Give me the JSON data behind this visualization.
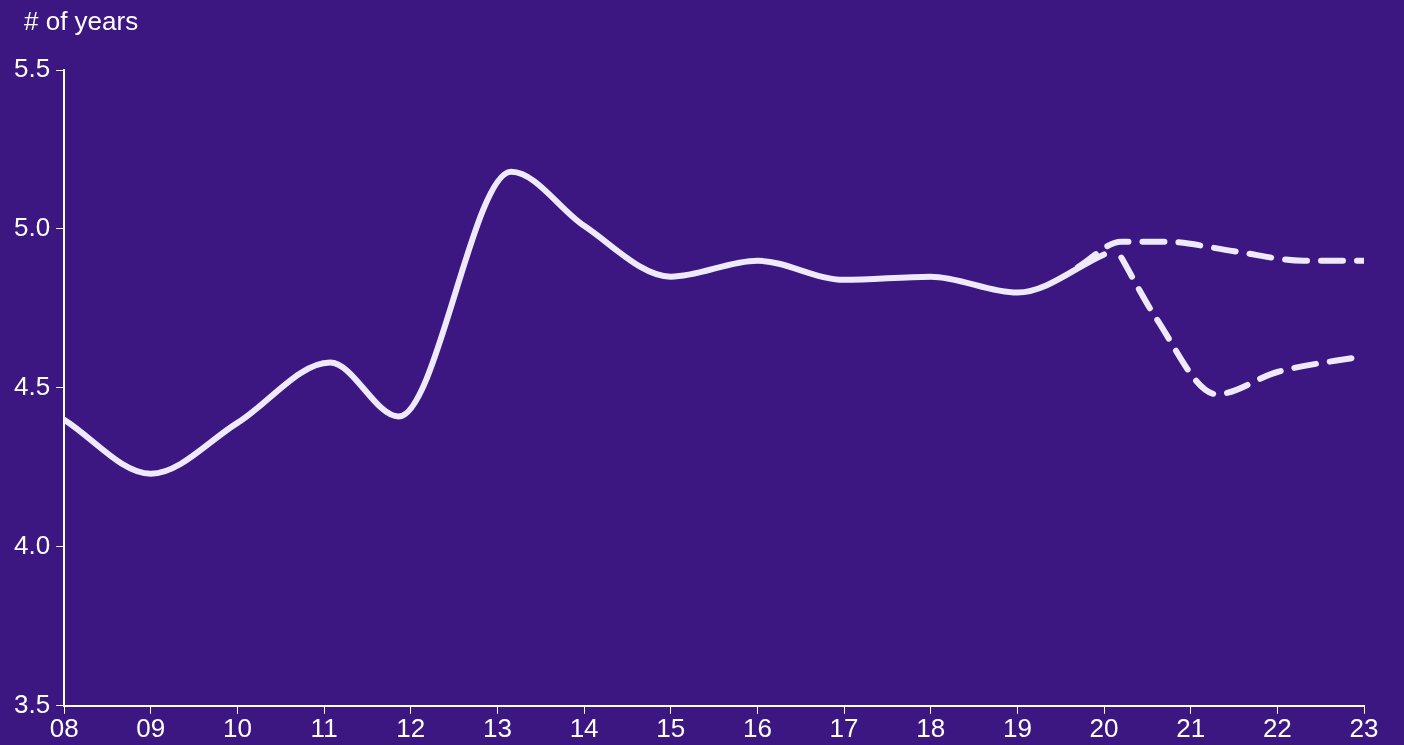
{
  "chart_data": {
    "type": "line",
    "ylabel": "# of years",
    "xlim": [
      8,
      23
    ],
    "ylim": [
      3.5,
      5.5
    ],
    "xticks": [
      {
        "value": 8,
        "label": "08"
      },
      {
        "value": 9,
        "label": "09"
      },
      10,
      11,
      12,
      13,
      14,
      15,
      16,
      17,
      18,
      19,
      20,
      21,
      22,
      23
    ],
    "yticks": [
      {
        "value": 3.5,
        "label": "3.5"
      },
      {
        "value": 4,
        "label": "4.0"
      },
      {
        "value": 4.5,
        "label": "4.5"
      },
      {
        "value": 5,
        "label": "5.0"
      },
      {
        "value": 5.5,
        "label": "5.5"
      }
    ],
    "grid": false,
    "legend": false,
    "marker": "none",
    "series": [
      {
        "color": "#eeeafc",
        "line_style": "solid",
        "x": [
          8,
          9,
          10,
          11.07,
          11.86,
          13.16,
          14,
          15,
          16,
          17,
          18,
          19,
          20
        ],
        "values": [
          4.4,
          4.23,
          4.39,
          4.58,
          4.41,
          5.18,
          5.01,
          4.85,
          4.9,
          4.84,
          4.85,
          4.8,
          4.92
        ]
      },
      {
        "color": "#eeeafc",
        "line_style": "dashed",
        "x": [
          19.7,
          20.2,
          20.7,
          21.5,
          22.3,
          23
        ],
        "values": [
          4.88,
          4.96,
          4.96,
          4.93,
          4.9,
          4.9
        ]
      },
      {
        "color": "#eeeafc",
        "line_style": "dashed",
        "x": [
          20.2,
          20.6,
          21.3,
          22,
          23
        ],
        "values": [
          4.91,
          4.72,
          4.48,
          4.55,
          4.6
        ]
      }
    ]
  }
}
